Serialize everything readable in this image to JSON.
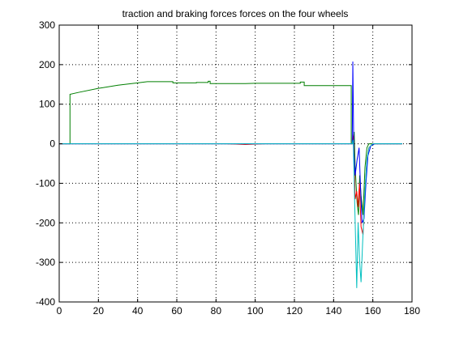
{
  "chart_data": {
    "type": "line",
    "title": "traction and braking forces forces on the four wheels",
    "xlabel": "",
    "ylabel": "",
    "xlim": [
      0,
      180
    ],
    "ylim": [
      -400,
      300
    ],
    "xticks": [
      0,
      20,
      40,
      60,
      80,
      100,
      120,
      140,
      160,
      180
    ],
    "yticks": [
      -400,
      -300,
      -200,
      -100,
      0,
      100,
      200,
      300
    ],
    "xtick_labels": [
      "0",
      "20",
      "40",
      "60",
      "80",
      "100",
      "120",
      "140",
      "160",
      "180"
    ],
    "ytick_labels": [
      "-400",
      "-300",
      "-200",
      "-100",
      "0",
      "100",
      "200",
      "300"
    ],
    "grid": true,
    "grid_style": "dotted",
    "legend": "none",
    "series": [
      {
        "color": "#007f00",
        "points": [
          [
            0,
            0
          ],
          [
            5.5,
            0
          ],
          [
            5.5,
            125
          ],
          [
            10,
            130
          ],
          [
            20,
            140
          ],
          [
            30,
            148
          ],
          [
            40,
            154
          ],
          [
            45,
            157
          ],
          [
            58,
            157
          ],
          [
            58,
            154
          ],
          [
            70,
            154
          ],
          [
            70,
            155
          ],
          [
            76,
            155
          ],
          [
            76,
            158
          ],
          [
            77,
            158
          ],
          [
            77,
            152
          ],
          [
            95,
            152
          ],
          [
            100,
            153
          ],
          [
            123,
            153
          ],
          [
            123,
            156
          ],
          [
            125,
            156
          ],
          [
            125,
            147
          ],
          [
            149,
            147
          ],
          [
            149,
            0
          ],
          [
            150,
            0
          ],
          [
            150.5,
            30
          ],
          [
            151,
            -60
          ],
          [
            152,
            -150
          ],
          [
            152.7,
            -180
          ],
          [
            153.3,
            -80
          ],
          [
            154,
            -130
          ],
          [
            155,
            -180
          ],
          [
            156,
            -60
          ],
          [
            157,
            -10
          ],
          [
            158,
            0
          ],
          [
            175,
            0
          ]
        ]
      },
      {
        "color": "#ff0000",
        "points": [
          [
            0,
            0
          ],
          [
            85,
            0
          ],
          [
            90,
            -1
          ],
          [
            95,
            -2
          ],
          [
            100,
            -1
          ],
          [
            105,
            0
          ],
          [
            149.5,
            0
          ],
          [
            150.2,
            25
          ],
          [
            151,
            -140
          ],
          [
            151.8,
            -120
          ],
          [
            152.5,
            -160
          ],
          [
            153.2,
            -100
          ],
          [
            154,
            -210
          ],
          [
            155,
            -230
          ],
          [
            155.8,
            -140
          ],
          [
            157,
            -40
          ],
          [
            158,
            -10
          ],
          [
            160,
            0
          ],
          [
            175,
            0
          ]
        ]
      },
      {
        "color": "#0000ff",
        "points": [
          [
            0,
            0
          ],
          [
            149.5,
            0
          ],
          [
            149.8,
            208
          ],
          [
            150.3,
            -20
          ],
          [
            151,
            -80
          ],
          [
            152,
            -40
          ],
          [
            153,
            -10
          ],
          [
            153.8,
            -120
          ],
          [
            154.5,
            -200
          ],
          [
            155.5,
            -190
          ],
          [
            156.5,
            -100
          ],
          [
            157.5,
            -30
          ],
          [
            159,
            -5
          ],
          [
            161,
            0
          ],
          [
            175,
            0
          ]
        ]
      },
      {
        "color": "#00bfbf",
        "points": [
          [
            0,
            0
          ],
          [
            149.5,
            0
          ],
          [
            150,
            10
          ],
          [
            151,
            -200
          ],
          [
            151.8,
            -365
          ],
          [
            152.5,
            -200
          ],
          [
            153.3,
            -300
          ],
          [
            154,
            -350
          ],
          [
            154.8,
            -250
          ],
          [
            156,
            -120
          ],
          [
            157,
            -40
          ],
          [
            158,
            -10
          ],
          [
            160,
            0
          ],
          [
            175,
            0
          ]
        ]
      }
    ]
  }
}
